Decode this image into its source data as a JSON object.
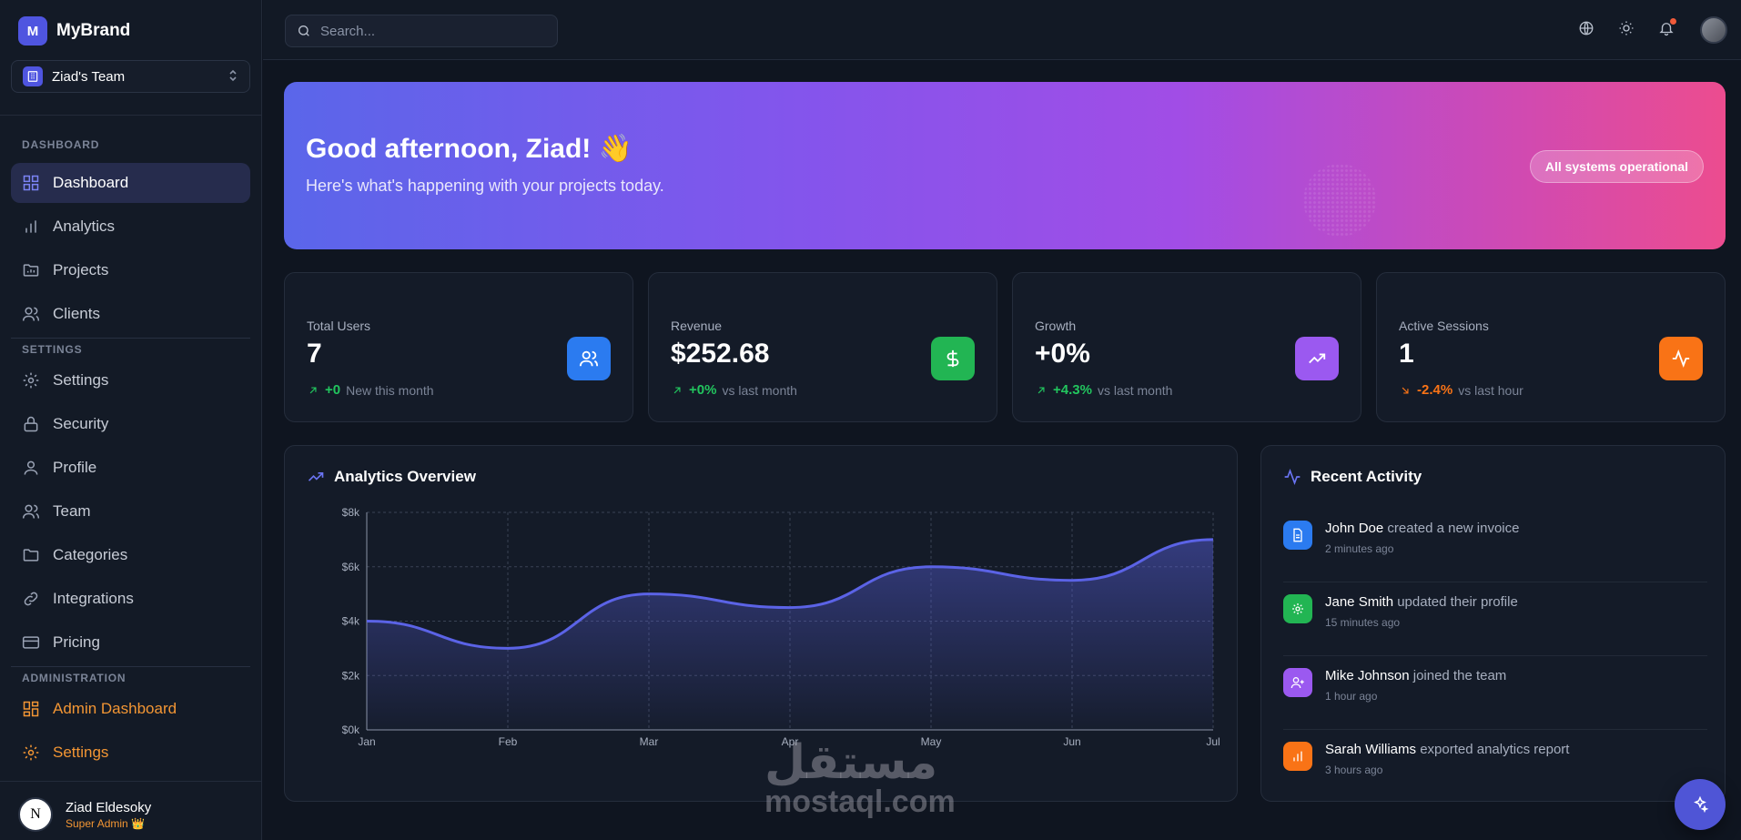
{
  "brand": {
    "logo_letter": "M",
    "name": "MyBrand"
  },
  "team_switcher": {
    "name": "Ziad's Team"
  },
  "sidebar": {
    "sections": [
      {
        "label": "DASHBOARD",
        "items": [
          {
            "label": "Dashboard",
            "icon": "grid-icon",
            "active": true
          },
          {
            "label": "Analytics",
            "icon": "bar-chart-icon"
          },
          {
            "label": "Projects",
            "icon": "folder-icon"
          },
          {
            "label": "Clients",
            "icon": "users-icon"
          }
        ]
      },
      {
        "label": "SETTINGS",
        "items": [
          {
            "label": "Settings",
            "icon": "gear-icon"
          },
          {
            "label": "Security",
            "icon": "lock-icon"
          },
          {
            "label": "Profile",
            "icon": "user-icon"
          },
          {
            "label": "Team",
            "icon": "users-icon"
          },
          {
            "label": "Categories",
            "icon": "folder-icon"
          },
          {
            "label": "Integrations",
            "icon": "link-icon"
          },
          {
            "label": "Pricing",
            "icon": "credit-card-icon"
          }
        ]
      },
      {
        "label": "ADMINISTRATION",
        "items": [
          {
            "label": "Admin Dashboard",
            "icon": "grid-icon"
          },
          {
            "label": "Settings",
            "icon": "gear-icon"
          }
        ]
      }
    ]
  },
  "user": {
    "initial": "N",
    "name": "Ziad Eldesoky",
    "role": "Super Admin 👑"
  },
  "search": {
    "placeholder": "Search..."
  },
  "hero": {
    "title": "Good afternoon, Ziad! 👋",
    "subtitle": "Here's what's happening with your projects today.",
    "badge": "All systems operational"
  },
  "stats": [
    {
      "label": "Total Users",
      "value": "7",
      "trend": "+0",
      "note": "New this month",
      "direction": "up",
      "icon": "users-icon",
      "color": "#2b7bf0"
    },
    {
      "label": "Revenue",
      "value": "$252.68",
      "trend": "+0%",
      "note": "vs last month",
      "direction": "up",
      "icon": "dollar-icon",
      "color": "#22b553"
    },
    {
      "label": "Growth",
      "value": "+0%",
      "trend": "+4.3%",
      "note": "vs last month",
      "direction": "up",
      "icon": "trending-up-icon",
      "color": "#9b59f0"
    },
    {
      "label": "Active Sessions",
      "value": "1",
      "trend": "-2.4%",
      "note": "vs last hour",
      "direction": "down",
      "icon": "activity-icon",
      "color": "#f97316"
    }
  ],
  "analytics": {
    "title": "Analytics Overview"
  },
  "chart_data": {
    "type": "area",
    "title": "Analytics Overview",
    "categories": [
      "Jan",
      "Feb",
      "Mar",
      "Apr",
      "May",
      "Jun",
      "Jul"
    ],
    "values": [
      4000,
      3000,
      5000,
      4500,
      6000,
      5500,
      7000
    ],
    "yticks": [
      "$0k",
      "$2k",
      "$4k",
      "$6k",
      "$8k"
    ],
    "ylim": [
      0,
      8000
    ],
    "grid": true,
    "color": "#5b63e6"
  },
  "activity": {
    "title": "Recent Activity",
    "items": [
      {
        "who": "John Doe",
        "action": " created a new invoice",
        "time": "2 minutes ago",
        "icon": "file-icon",
        "color": "#2b7bf0"
      },
      {
        "who": "Jane Smith",
        "action": " updated their profile",
        "time": "15 minutes ago",
        "icon": "gear-icon",
        "color": "#22b553"
      },
      {
        "who": "Mike Johnson",
        "action": " joined the team",
        "time": "1 hour ago",
        "icon": "user-plus-icon",
        "color": "#9b59f0"
      },
      {
        "who": "Sarah Williams",
        "action": " exported analytics report",
        "time": "3 hours ago",
        "icon": "bar-chart-icon",
        "color": "#f97316"
      }
    ]
  },
  "watermark": {
    "arabic": "مستقل",
    "latin": "mostaql.com"
  }
}
